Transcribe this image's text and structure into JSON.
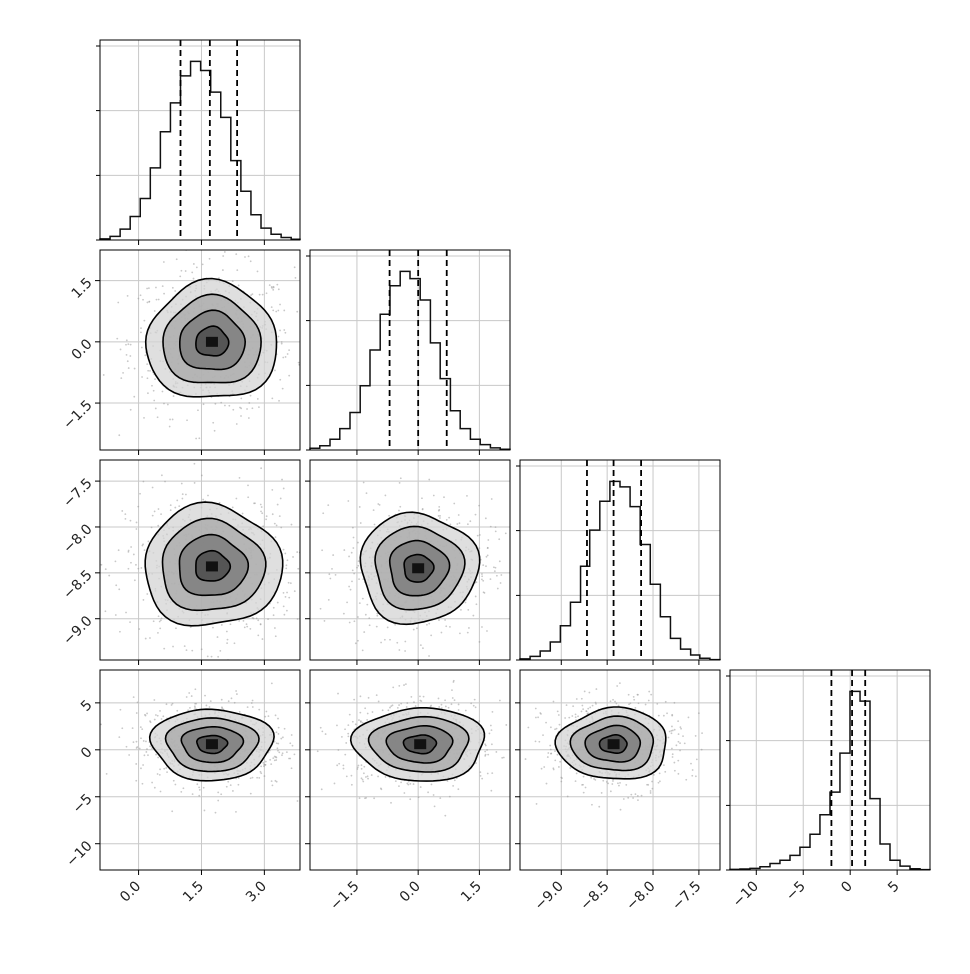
{
  "chart_data": {
    "type": "corner",
    "parameters": [
      {
        "ticks": [
          0.0,
          1.5,
          3.0
        ],
        "tick_labels": [
          "0.0",
          "1.5",
          "3.0"
        ],
        "range": [
          -0.92,
          3.85
        ],
        "quantiles": [
          1.0,
          1.7,
          2.35
        ],
        "histogram": {
          "bin_edges": [
            -0.92,
            -0.68,
            -0.44,
            -0.2,
            0.04,
            0.28,
            0.52,
            0.76,
            1.0,
            1.24,
            1.48,
            1.72,
            1.96,
            2.2,
            2.44,
            2.68,
            2.92,
            3.16,
            3.4,
            3.64,
            3.85
          ],
          "counts": [
            0.3,
            1.0,
            3.0,
            6.5,
            11.5,
            20.0,
            30.0,
            38.0,
            45.5,
            49.5,
            47.0,
            41.0,
            34.0,
            22.0,
            13.5,
            7.0,
            3.3,
            1.6,
            0.7,
            0.2
          ]
        }
      },
      {
        "ticks": [
          -1.5,
          0.0,
          1.5
        ],
        "tick_labels": [
          "−1.5",
          "0.0",
          "1.5"
        ],
        "range": [
          -2.65,
          2.25
        ],
        "quantiles": [
          -0.7,
          0.0,
          0.7
        ],
        "histogram": {
          "bin_edges": [
            -2.65,
            -2.41,
            -2.16,
            -1.92,
            -1.67,
            -1.42,
            -1.18,
            -0.93,
            -0.69,
            -0.44,
            -0.2,
            0.05,
            0.3,
            0.54,
            0.79,
            1.03,
            1.28,
            1.52,
            1.77,
            2.01,
            2.25
          ],
          "counts": [
            0.5,
            1.2,
            3.0,
            6.0,
            10.5,
            18.0,
            28.0,
            38.0,
            46.0,
            50.0,
            48.0,
            42.0,
            30.0,
            20.0,
            11.0,
            6.0,
            3.0,
            1.5,
            0.6,
            0.2
          ]
        }
      },
      {
        "ticks": [
          -9.0,
          -8.5,
          -8.0,
          -7.5
        ],
        "tick_labels": [
          "−9.0",
          "−8.5",
          "−8.0",
          "−7.5"
        ],
        "range": [
          -9.45,
          -7.27
        ],
        "quantiles": [
          -8.72,
          -8.43,
          -8.13
        ],
        "histogram": {
          "bin_edges": [
            -9.45,
            -9.34,
            -9.23,
            -9.12,
            -9.01,
            -8.9,
            -8.79,
            -8.69,
            -8.58,
            -8.47,
            -8.36,
            -8.25,
            -8.14,
            -8.03,
            -7.92,
            -7.81,
            -7.7,
            -7.59,
            -7.49,
            -7.38,
            -7.27
          ],
          "counts": [
            0.3,
            1.0,
            2.5,
            5.0,
            9.5,
            16.0,
            26.0,
            36.0,
            44.0,
            49.5,
            48.0,
            42.5,
            32.0,
            21.0,
            12.0,
            6.0,
            3.0,
            1.4,
            0.5,
            0.1
          ]
        }
      },
      {
        "ticks": [
          -10,
          -5,
          0,
          5
        ],
        "tick_labels": [
          "−10",
          "−5",
          "0",
          "5"
        ],
        "range": [
          -12.8,
          8.5
        ],
        "quantiles": [
          -2.0,
          0.2,
          1.6
        ],
        "histogram": {
          "bin_edges": [
            -12.8,
            -11.74,
            -10.67,
            -9.61,
            -8.54,
            -7.48,
            -6.41,
            -5.35,
            -4.28,
            -3.22,
            -2.15,
            -1.09,
            -0.02,
            1.05,
            2.11,
            3.18,
            4.24,
            5.31,
            6.37,
            7.44,
            8.5
          ],
          "counts": [
            0.2,
            0.3,
            0.5,
            1.0,
            2.0,
            3.0,
            4.5,
            7.0,
            11.0,
            17.0,
            24.0,
            36.0,
            55.0,
            52.0,
            22.0,
            8.0,
            3.0,
            1.2,
            0.4,
            0.1
          ]
        }
      }
    ],
    "contours": [
      {
        "row": 1,
        "col": 0,
        "center": [
          1.75,
          0.0
        ],
        "spread": [
          0.78,
          0.72
        ]
      },
      {
        "row": 2,
        "col": 0,
        "center": [
          1.75,
          -8.43
        ],
        "spread": [
          0.82,
          0.33
        ]
      },
      {
        "row": 2,
        "col": 1,
        "center": [
          0.0,
          -8.45
        ],
        "spread": [
          0.72,
          0.3
        ]
      },
      {
        "row": 3,
        "col": 0,
        "center": [
          1.75,
          0.6
        ],
        "spread": [
          0.72,
          1.9
        ]
      },
      {
        "row": 3,
        "col": 1,
        "center": [
          0.05,
          0.6
        ],
        "spread": [
          0.8,
          1.95
        ]
      },
      {
        "row": 3,
        "col": 2,
        "center": [
          -8.43,
          0.6
        ],
        "spread": [
          0.3,
          1.9
        ]
      }
    ],
    "grid": true
  }
}
